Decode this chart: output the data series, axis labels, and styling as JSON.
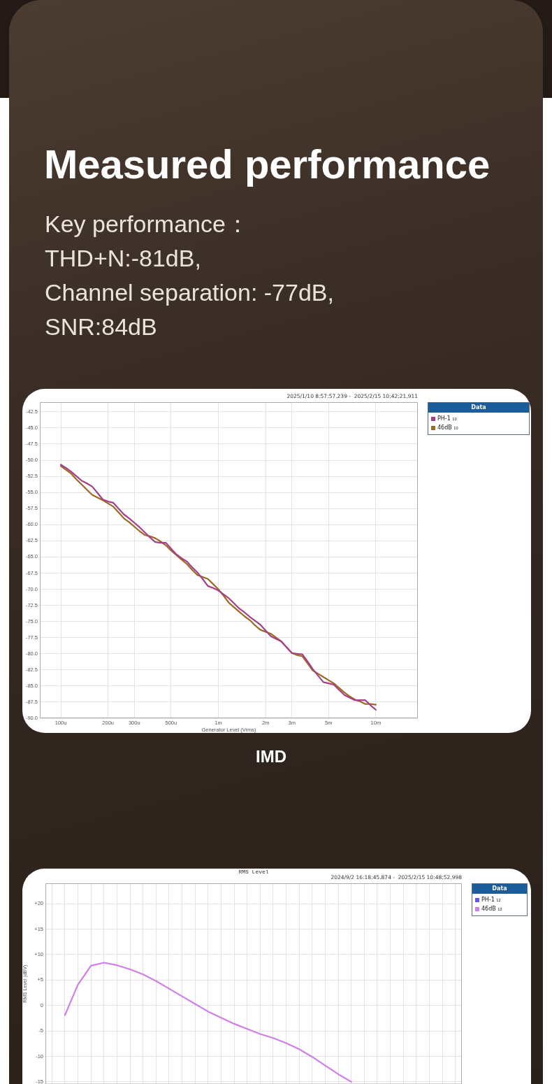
{
  "chart_data": [
    {
      "type": "line",
      "title": "Measured performance",
      "subtitle": "Key performance：\nTHD+N:-81dB,\nChannel separation: -77dB,\nSNR:84dB",
      "xlabel": "Generator Level (Vrms)",
      "annotations": [
        "2025/1/10 8:57:57.239 -  2025/2/15 10:42:21.911",
        "IMD"
      ],
      "legend_title": "Data",
      "legend": "right",
      "grid": true,
      "categories": [
        null,
        null,
        null,
        null,
        "100u",
        null,
        null,
        null,
        null,
        null,
        null,
        null,
        null,
        "200u",
        null,
        null,
        null,
        null,
        "300u",
        null,
        null,
        null,
        null,
        null,
        null,
        "500u",
        null,
        null,
        null,
        null,
        null,
        null,
        null,
        null,
        "1m",
        null,
        null,
        null,
        null,
        null,
        null,
        null,
        null,
        "2m",
        null,
        null,
        null,
        null,
        "3m",
        null,
        null,
        null,
        null,
        null,
        null,
        "5m",
        null,
        null,
        null,
        null,
        null,
        null,
        null,
        null,
        "10m",
        null,
        null,
        null,
        null,
        null,
        null,
        null,
        null
      ],
      "ylim": [
        -90,
        -41
      ],
      "yticks": [
        -42.5,
        {
          "value": -45,
          "label": "-45.0"
        },
        -47.5,
        {
          "value": -50,
          "label": "-50.0"
        },
        -52.5,
        {
          "value": -55,
          "label": "-55.0"
        },
        -57.5,
        {
          "value": -60,
          "label": "-60.0"
        },
        -62.5,
        {
          "value": -65,
          "label": "-65.0"
        },
        -67.5,
        {
          "value": -70,
          "label": "-70.0"
        },
        -72.5,
        {
          "value": -75,
          "label": "-75.0"
        },
        -77.5,
        {
          "value": -80,
          "label": "-80.0"
        },
        -82.5,
        {
          "value": -85,
          "label": "-85.0"
        },
        -87.5,
        {
          "value": -90,
          "label": "-90.0"
        }
      ],
      "series": [
        {
          "name": "PH-1 ₁₀",
          "color": "#a53f8a",
          "values": [
            null,
            null,
            null,
            null,
            -50.7,
            -51.2,
            -51.8,
            -52.5,
            -53.2,
            -53.6,
            -54.1,
            -55.1,
            -56.1,
            -56.4,
            -56.6,
            -57.5,
            -58.4,
            -59.0,
            -59.7,
            -60.4,
            -61.2,
            -62.0,
            -62.7,
            -62.8,
            -62.8,
            -63.7,
            -64.6,
            -65.2,
            -65.7,
            -66.6,
            -67.4,
            -68.4,
            -69.5,
            -69.8,
            -70.2,
            -70.8,
            -71.4,
            -72.2,
            -73.0,
            -73.6,
            -74.3,
            -74.9,
            -75.5,
            -76.4,
            -77.3,
            -77.7,
            -78.1,
            -79.0,
            -79.9,
            -80.0,
            -80.1,
            -81.2,
            -82.4,
            -83.4,
            -84.4,
            -84.6,
            -84.8,
            -85.6,
            -86.4,
            -86.8,
            -87.2,
            -87.2,
            -87.2,
            -88.0,
            -88.7,
            null,
            null,
            null,
            null,
            null,
            null,
            null,
            null
          ]
        },
        {
          "name": "46dB ₁₀",
          "color": "#9c6a22",
          "values": [
            null,
            null,
            null,
            null,
            -50.9,
            -51.5,
            -52.1,
            -53.0,
            -53.8,
            -54.6,
            -55.4,
            -55.8,
            -56.2,
            -56.7,
            -57.2,
            -58.1,
            -59.0,
            -59.6,
            -60.3,
            -61.0,
            -61.6,
            -61.8,
            -62.1,
            -62.6,
            -63.2,
            -64.0,
            -64.7,
            -65.4,
            -66.1,
            -67.0,
            -67.8,
            -68.1,
            -68.4,
            -69.2,
            -70.0,
            -71.0,
            -72.1,
            -72.8,
            -73.5,
            -74.2,
            -74.8,
            -75.6,
            -76.3,
            -76.6,
            -76.9,
            -77.5,
            -78.1,
            -79.0,
            -79.9,
            -80.2,
            -80.4,
            -81.5,
            -82.6,
            -83.1,
            -83.6,
            -84.1,
            -84.6,
            -85.3,
            -86.0,
            -86.6,
            -87.1,
            -87.4,
            -87.8,
            -87.8,
            -87.9,
            null,
            null,
            null,
            null,
            null,
            null,
            null,
            null
          ]
        }
      ]
    },
    {
      "type": "line",
      "title": "RMS Level",
      "ylabel": "RMS Level (dBV)",
      "annotations": [
        "2024/9/2 16:18:45.874 -  2025/2/15 10:48:52.998"
      ],
      "legend_title": "Data",
      "legend": "right",
      "grid": true,
      "categories": [
        null,
        null,
        null,
        null,
        null,
        null,
        null,
        null,
        null,
        null,
        null,
        null,
        null,
        null,
        null,
        null,
        null,
        null,
        null,
        null,
        null,
        null,
        null,
        null,
        null,
        null,
        null,
        null,
        null,
        null,
        null,
        null
      ],
      "ylim": [
        -15.5,
        24
      ],
      "yticks": [
        -15,
        -10,
        -5,
        0,
        {
          "value": 5,
          "label": "+5"
        },
        {
          "value": 10,
          "label": "+10"
        },
        {
          "value": 15,
          "label": "+15"
        },
        {
          "value": 20,
          "label": "+20"
        }
      ],
      "series": [
        {
          "name": "PH-1 ₁₂",
          "color": "#5b5bef",
          "values": [
            null,
            null,
            null,
            null,
            null,
            null,
            null,
            null,
            null,
            null,
            null,
            null,
            null,
            null,
            null,
            null,
            null,
            null,
            null,
            null,
            null,
            null,
            null,
            null,
            null,
            null,
            null,
            null,
            null,
            null,
            null,
            null
          ]
        },
        {
          "name": "46dB ₁₂",
          "color": "#d07ee8",
          "values": [
            null,
            -1.9,
            4.1,
            7.8,
            8.4,
            7.9,
            7.1,
            6.1,
            4.8,
            3.3,
            1.8,
            0.3,
            -1.2,
            -2.4,
            -3.6,
            -4.6,
            -5.6,
            -6.4,
            -7.4,
            -8.6,
            -10.1,
            -11.8,
            -13.5,
            -15.0,
            null,
            null,
            null,
            null,
            null,
            null,
            null,
            null
          ]
        }
      ]
    }
  ]
}
